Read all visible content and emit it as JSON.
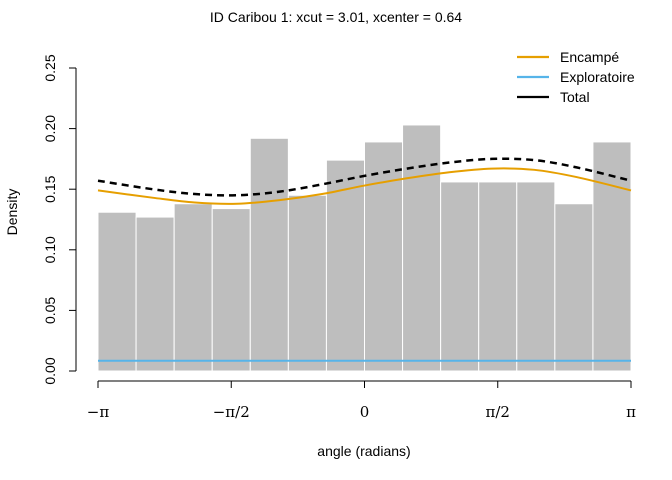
{
  "chart_data": {
    "type": "bar",
    "title": "ID Caribou 1: xcut = 3.01, xcenter = 0.64",
    "xlabel": "angle (radians)",
    "ylabel": "Density",
    "xlim": [
      -3.14159,
      3.14159
    ],
    "ylim": [
      0,
      0.25
    ],
    "yticks": [
      "0.00",
      "0.05",
      "0.10",
      "0.15",
      "0.20",
      "0.25"
    ],
    "xticks": [
      {
        "value": -3.14159,
        "label": "−π"
      },
      {
        "value": -1.5708,
        "label": "−π/2"
      },
      {
        "value": 0,
        "label": "0"
      },
      {
        "value": 1.5708,
        "label": "π/2"
      },
      {
        "value": 3.14159,
        "label": "π"
      }
    ],
    "bin_edges": [
      -3.14159,
      -2.69279,
      -2.24399,
      -1.7952,
      -1.3464,
      -0.8976,
      -0.4488,
      0,
      0.4488,
      0.8976,
      1.3464,
      1.7952,
      2.24399,
      2.69279,
      3.14159
    ],
    "histogram_density": [
      0.131,
      0.127,
      0.138,
      0.134,
      0.192,
      0.145,
      0.174,
      0.189,
      0.203,
      0.156,
      0.156,
      0.156,
      0.138,
      0.189
    ],
    "bar_color": "#bebebe",
    "series": [
      {
        "name": "Encampé",
        "color": "#e69f00",
        "style": "solid",
        "x": [
          -3.14159,
          -2.5,
          -2.0,
          -1.5,
          -1.0,
          -0.5,
          0,
          0.5,
          1.0,
          1.5,
          2.0,
          2.5,
          3.14159
        ],
        "y": [
          0.149,
          0.143,
          0.139,
          0.138,
          0.141,
          0.146,
          0.153,
          0.159,
          0.164,
          0.167,
          0.166,
          0.16,
          0.149
        ]
      },
      {
        "name": "Exploratoire",
        "color": "#56b4e9",
        "style": "solid",
        "x": [
          -3.14159,
          3.14159
        ],
        "y": [
          0.0085,
          0.0085
        ]
      },
      {
        "name": "Total",
        "color": "#000000",
        "style": "dashed",
        "x": [
          -3.14159,
          -2.5,
          -2.0,
          -1.5,
          -1.0,
          -0.5,
          0,
          0.5,
          1.0,
          1.5,
          2.0,
          2.5,
          3.14159
        ],
        "y": [
          0.157,
          0.15,
          0.146,
          0.145,
          0.148,
          0.154,
          0.161,
          0.167,
          0.172,
          0.175,
          0.174,
          0.168,
          0.157
        ]
      }
    ],
    "legend_position": "top-right",
    "grid": false
  }
}
